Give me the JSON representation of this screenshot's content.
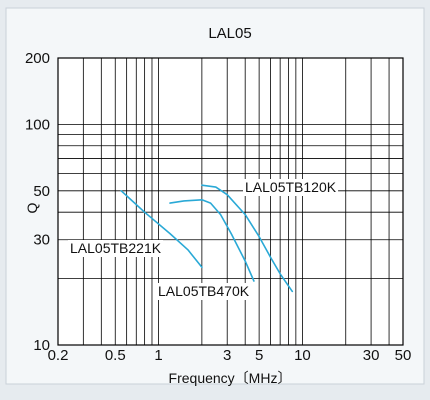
{
  "chart_data": {
    "type": "line",
    "title": "LAL05",
    "xlabel": "Frequency〔MHz〕",
    "ylabel": "Q",
    "x_scale": "log",
    "y_scale": "log",
    "xlim": [
      0.2,
      50
    ],
    "ylim": [
      10,
      200
    ],
    "x_ticks": [
      {
        "value": 0.2,
        "label": "0.2"
      },
      {
        "value": 0.5,
        "label": "0.5"
      },
      {
        "value": 1,
        "label": "1"
      },
      {
        "value": 3,
        "label": "3"
      },
      {
        "value": 5,
        "label": "5"
      },
      {
        "value": 10,
        "label": "10"
      },
      {
        "value": 30,
        "label": "30"
      },
      {
        "value": 50,
        "label": "50"
      }
    ],
    "y_ticks": [
      {
        "value": 10,
        "label": "10"
      },
      {
        "value": 30,
        "label": "30"
      },
      {
        "value": 50,
        "label": "50"
      },
      {
        "value": 100,
        "label": "100"
      },
      {
        "value": 200,
        "label": "200"
      }
    ],
    "grid": true,
    "colors": {
      "series": "#2aa9d6",
      "grid": "#000000",
      "background": "#e6ebef",
      "plot_bg": "#ffffff"
    },
    "series": [
      {
        "name": "LAL05TB120K",
        "points": [
          [
            2.0,
            53
          ],
          [
            2.5,
            52
          ],
          [
            3.0,
            48
          ],
          [
            4.0,
            39
          ],
          [
            5.0,
            31
          ],
          [
            6.0,
            25
          ],
          [
            7.0,
            21
          ],
          [
            8.5,
            17.5
          ]
        ]
      },
      {
        "name": "LAL05TB470K",
        "points": [
          [
            1.2,
            44
          ],
          [
            1.5,
            45
          ],
          [
            2.0,
            45.5
          ],
          [
            2.3,
            44
          ],
          [
            2.7,
            39
          ],
          [
            3.2,
            32
          ],
          [
            4.0,
            24
          ],
          [
            4.6,
            19.5
          ]
        ]
      },
      {
        "name": "LAL05TB221K",
        "points": [
          [
            0.55,
            50
          ],
          [
            0.8,
            40
          ],
          [
            1.2,
            32
          ],
          [
            1.6,
            27
          ],
          [
            2.0,
            22.5
          ]
        ]
      }
    ]
  }
}
